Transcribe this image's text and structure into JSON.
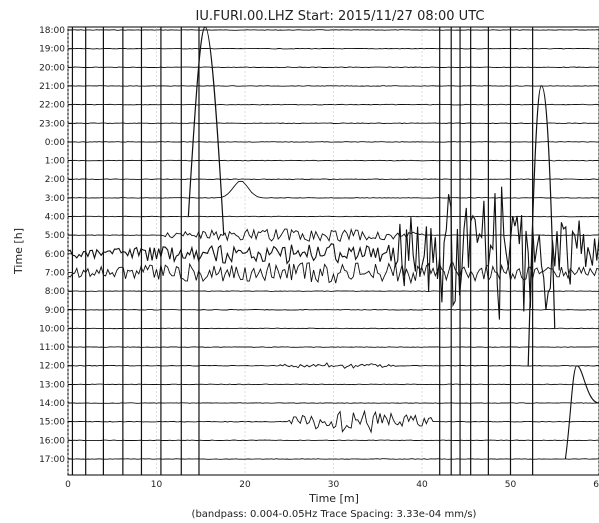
{
  "chart_data": {
    "type": "line",
    "title": "IU.FURI.00.LHZ  Start: 2015/11/27 08:00 UTC",
    "xlabel": "Time [m]",
    "ylabel": "Time [h]",
    "caption": "(bandpass: 0.004-0.05Hz  Trace Spacing: 3.33e-04 mm/s)",
    "xlim": [
      0,
      60
    ],
    "x_ticks": [
      "0",
      "10",
      "20",
      "30",
      "40",
      "50",
      "60"
    ],
    "x_tick_values": [
      0,
      10,
      20,
      30,
      40,
      50,
      60
    ],
    "y_ticks": [
      "18:00",
      "19:00",
      "20:00",
      "21:00",
      "22:00",
      "23:00",
      "0:00",
      "1:00",
      "2:00",
      "3:00",
      "4:00",
      "5:00",
      "6:00",
      "7:00",
      "8:00",
      "9:00",
      "10:00",
      "11:00",
      "12:00",
      "13:00",
      "14:00",
      "15:00",
      "16:00",
      "17:00"
    ],
    "grid": true,
    "vertical_traces_x": [
      0.5,
      2,
      4,
      6.2,
      8.3,
      10.5,
      12.8,
      14.8,
      42,
      43.3,
      44.3,
      45.5,
      47.5,
      50,
      52.5
    ],
    "events": [
      {
        "row": "3:00",
        "type": "pulse",
        "start": 16,
        "peak": 19.5,
        "end": 22
      },
      {
        "row": "5:00",
        "type": "burst",
        "start": 11,
        "end": 40,
        "amp": 0.35
      },
      {
        "row": "6:00",
        "type": "burst",
        "start": 0,
        "end": 60,
        "amp": 0.55
      },
      {
        "row": "7:00",
        "type": "burst",
        "start": 0,
        "end": 60,
        "amp": 0.6
      },
      {
        "row": "6:00",
        "type": "large_burst",
        "start": 37,
        "end": 60,
        "amp": 3.5
      },
      {
        "row": "12:00",
        "type": "burst",
        "start": 23,
        "end": 37,
        "amp": 0.15
      },
      {
        "row": "15:00",
        "type": "burst",
        "start": 25,
        "end": 41,
        "amp": 0.6
      }
    ]
  }
}
